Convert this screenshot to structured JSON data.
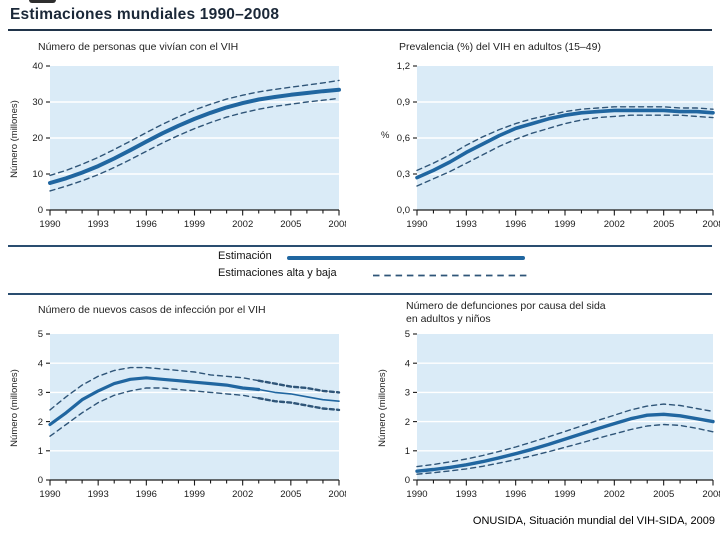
{
  "page": {
    "title": "Estimaciones mundiales 1990–2008",
    "source": "ONUSIDA, Situación mundial del VIH-SIDA, 2009"
  },
  "legend": {
    "estimate_label": "Estimación",
    "bounds_label": "Estimaciones alta y baja"
  },
  "colors": {
    "plot_bg": "#daebf7",
    "estimate_line": "#2066a0",
    "bounds_line": "#2f5578",
    "grid": "#ffffff",
    "axis": "#1a1a1a",
    "rule": "#2a4d70",
    "title_rule": "#20344a"
  },
  "chart_data": [
    {
      "type": "line",
      "title": "Número de personas que vivían con el VIH",
      "ylabel": "Número (millones)",
      "xlim": [
        1990,
        2008
      ],
      "ylim": [
        0,
        40
      ],
      "x": [
        1990,
        1991,
        1992,
        1993,
        1994,
        1995,
        1996,
        1997,
        1998,
        1999,
        2000,
        2001,
        2002,
        2003,
        2004,
        2005,
        2006,
        2007,
        2008
      ],
      "xtick_labels": [
        "1990",
        "1993",
        "1996",
        "1999",
        "2002",
        "2005",
        "2008"
      ],
      "yticks": [
        0,
        10,
        20,
        30,
        40
      ],
      "ytick_labels": [
        "0",
        "10",
        "20",
        "30",
        "40"
      ],
      "gridlines": [
        10,
        20,
        30
      ],
      "series": [
        {
          "name": "Estimación",
          "role": "estimate",
          "values": [
            7.5,
            8.8,
            10.4,
            12.2,
            14.3,
            16.6,
            19.0,
            21.3,
            23.4,
            25.3,
            27.0,
            28.5,
            29.7,
            30.7,
            31.4,
            32.0,
            32.5,
            33.0,
            33.4
          ]
        },
        {
          "name": "Estimación alta",
          "role": "high",
          "values": [
            9.6,
            11.0,
            12.7,
            14.6,
            16.8,
            19.1,
            21.5,
            23.8,
            25.9,
            27.8,
            29.4,
            30.8,
            31.9,
            32.8,
            33.5,
            34.1,
            34.7,
            35.3,
            36.0
          ]
        },
        {
          "name": "Estimación baja",
          "role": "low",
          "values": [
            5.3,
            6.6,
            8.1,
            9.8,
            11.8,
            14.0,
            16.3,
            18.6,
            20.7,
            22.6,
            24.3,
            25.8,
            27.0,
            28.0,
            28.8,
            29.4,
            30.0,
            30.5,
            31.0
          ]
        }
      ]
    },
    {
      "type": "line",
      "title": "Prevalencia (%) del VIH en adultos (15–49)",
      "ylabel": "%",
      "xlim": [
        1990,
        2008
      ],
      "ylim": [
        0,
        1.2
      ],
      "x": [
        1990,
        1991,
        1992,
        1993,
        1994,
        1995,
        1996,
        1997,
        1998,
        1999,
        2000,
        2001,
        2002,
        2003,
        2004,
        2005,
        2006,
        2007,
        2008
      ],
      "xtick_labels": [
        "1990",
        "1993",
        "1996",
        "1999",
        "2002",
        "2005",
        "2008"
      ],
      "yticks": [
        0,
        0.3,
        0.6,
        0.9,
        1.2
      ],
      "ytick_labels": [
        "0,0",
        "0,3",
        "0,6",
        "0,9",
        "1,2"
      ],
      "gridlines": [
        0.3,
        0.6,
        0.9
      ],
      "series": [
        {
          "name": "Estimación",
          "role": "estimate",
          "values": [
            0.27,
            0.33,
            0.4,
            0.48,
            0.55,
            0.62,
            0.68,
            0.72,
            0.76,
            0.79,
            0.81,
            0.82,
            0.83,
            0.83,
            0.83,
            0.83,
            0.82,
            0.82,
            0.81
          ]
        },
        {
          "name": "Estimación alta",
          "role": "high",
          "values": [
            0.33,
            0.39,
            0.46,
            0.54,
            0.61,
            0.67,
            0.72,
            0.76,
            0.79,
            0.82,
            0.84,
            0.85,
            0.86,
            0.86,
            0.86,
            0.86,
            0.85,
            0.85,
            0.84
          ]
        },
        {
          "name": "Estimación baja",
          "role": "low",
          "values": [
            0.2,
            0.26,
            0.32,
            0.39,
            0.46,
            0.53,
            0.59,
            0.64,
            0.68,
            0.72,
            0.75,
            0.77,
            0.78,
            0.79,
            0.79,
            0.79,
            0.79,
            0.78,
            0.77
          ]
        }
      ]
    },
    {
      "type": "line",
      "title": "Número de nuevos casos de infección por el VIH",
      "ylabel": "Número (millones)",
      "xlim": [
        1990,
        2008
      ],
      "ylim": [
        0,
        5
      ],
      "x": [
        1990,
        1991,
        1992,
        1993,
        1994,
        1995,
        1996,
        1997,
        1998,
        1999,
        2000,
        2001,
        2002,
        2003,
        2004,
        2005,
        2006,
        2007,
        2008
      ],
      "xtick_labels": [
        "1990",
        "1993",
        "1996",
        "1999",
        "2002",
        "2005",
        "2008"
      ],
      "yticks": [
        0,
        1,
        2,
        3,
        4,
        5
      ],
      "ytick_labels": [
        "0",
        "1",
        "2",
        "3",
        "4",
        "5"
      ],
      "gridlines": [
        1,
        2,
        3,
        4
      ],
      "series": [
        {
          "name": "Estimación",
          "role": "estimate",
          "values": [
            1.9,
            2.3,
            2.75,
            3.05,
            3.3,
            3.45,
            3.5,
            3.45,
            3.4,
            3.35,
            3.3,
            3.25,
            3.15,
            3.1,
            3.0,
            2.95,
            2.85,
            2.75,
            2.7
          ]
        },
        {
          "name": "Estimación alta",
          "role": "high",
          "values": [
            2.4,
            2.85,
            3.25,
            3.55,
            3.75,
            3.85,
            3.85,
            3.8,
            3.75,
            3.7,
            3.6,
            3.55,
            3.5,
            3.4,
            3.3,
            3.2,
            3.15,
            3.05,
            3.0
          ]
        },
        {
          "name": "Estimación baja",
          "role": "low",
          "values": [
            1.5,
            1.9,
            2.3,
            2.65,
            2.9,
            3.05,
            3.15,
            3.15,
            3.1,
            3.05,
            3.0,
            2.95,
            2.9,
            2.8,
            2.7,
            2.65,
            2.55,
            2.45,
            2.4
          ]
        }
      ]
    },
    {
      "type": "line",
      "title": "Número de defunciones por causa del sida",
      "title2": "en adultos y niños",
      "ylabel": "Número (millones)",
      "xlim": [
        1990,
        2008
      ],
      "ylim": [
        0,
        5
      ],
      "x": [
        1990,
        1991,
        1992,
        1993,
        1994,
        1995,
        1996,
        1997,
        1998,
        1999,
        2000,
        2001,
        2002,
        2003,
        2004,
        2005,
        2006,
        2007,
        2008
      ],
      "xtick_labels": [
        "1990",
        "1993",
        "1996",
        "1999",
        "2002",
        "2005",
        "2008"
      ],
      "yticks": [
        0,
        1,
        2,
        3,
        4,
        5
      ],
      "ytick_labels": [
        "0",
        "1",
        "2",
        "3",
        "4",
        "5"
      ],
      "gridlines": [
        1,
        2,
        3,
        4
      ],
      "series": [
        {
          "name": "Estimación",
          "role": "estimate",
          "values": [
            0.3,
            0.36,
            0.43,
            0.52,
            0.63,
            0.76,
            0.9,
            1.05,
            1.22,
            1.4,
            1.58,
            1.76,
            1.93,
            2.1,
            2.22,
            2.25,
            2.2,
            2.1,
            2.0
          ]
        },
        {
          "name": "Estimación alta",
          "role": "high",
          "values": [
            0.46,
            0.53,
            0.62,
            0.72,
            0.84,
            0.98,
            1.13,
            1.3,
            1.48,
            1.66,
            1.85,
            2.04,
            2.22,
            2.4,
            2.53,
            2.6,
            2.55,
            2.45,
            2.35
          ]
        },
        {
          "name": "Estimación baja",
          "role": "low",
          "values": [
            0.2,
            0.25,
            0.31,
            0.38,
            0.47,
            0.58,
            0.7,
            0.83,
            0.97,
            1.12,
            1.27,
            1.43,
            1.58,
            1.73,
            1.85,
            1.9,
            1.87,
            1.77,
            1.65
          ]
        }
      ]
    }
  ]
}
